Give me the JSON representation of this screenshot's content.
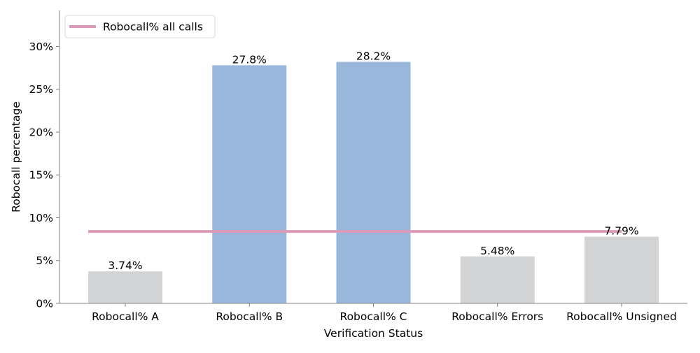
{
  "chart_data": {
    "type": "bar",
    "xlabel": "Verification Status",
    "ylabel": "Robocall percentage",
    "categories": [
      "Robocall% A",
      "Robocall% B",
      "Robocall% C",
      "Robocall% Errors",
      "Robocall% Unsigned"
    ],
    "values": [
      3.74,
      27.8,
      28.2,
      5.48,
      7.79
    ],
    "value_labels": [
      "3.74%",
      "27.8%",
      "28.2%",
      "5.48%",
      "7.79%"
    ],
    "bar_colors": [
      "#d3d4d6",
      "#99b7db",
      "#99b7db",
      "#d3d4d6",
      "#d3d4d6"
    ],
    "reference_line": {
      "name": "Robocall% all calls",
      "value": 8.4,
      "color": "#dc9ab9"
    },
    "ylim": [
      0,
      34.2
    ],
    "yticks": [
      0,
      5,
      10,
      15,
      20,
      25,
      30
    ],
    "ytick_labels": [
      "0%",
      "5%",
      "10%",
      "15%",
      "20%",
      "25%",
      "30%"
    ],
    "legend_position": "top-left",
    "grid": false
  }
}
